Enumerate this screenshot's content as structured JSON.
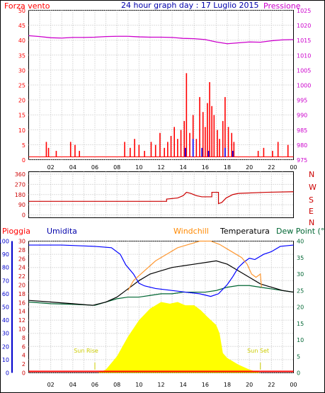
{
  "colors": {
    "wind": "#ff0000",
    "gust": "#0000ff",
    "pressure": "#cc00cc",
    "winddir": "#cc0000",
    "rain": "#ff0000",
    "humidity": "#0000ff",
    "windchill": "#ff9933",
    "temperature": "#000000",
    "dewpoint": "#006633",
    "solar": "#ffff00",
    "axis": "#000000",
    "grid": "#bbbbbb"
  },
  "chart_data": [
    {
      "type": "bar",
      "title": "24 hour graph day : 17 Luglio 2015",
      "left_label": "Forza vento",
      "right_label": "Pressione",
      "x_ticks": [
        "02",
        "04",
        "06",
        "08",
        "10",
        "12",
        "14",
        "16",
        "18",
        "20",
        "22",
        "00"
      ],
      "y_left_ticks": [
        "0",
        "5",
        "10",
        "15",
        "20",
        "25",
        "30",
        "35",
        "40",
        "45",
        "50"
      ],
      "y_right_ticks": [
        "975",
        "980",
        "985",
        "990",
        "995",
        "1000",
        "1005",
        "1010",
        "1015",
        "1020",
        "1025"
      ],
      "xlim": [
        0,
        24
      ],
      "ylim_left": [
        0,
        50
      ],
      "ylim_right": [
        975,
        1025
      ],
      "series": [
        {
          "key": "pressure",
          "axis": "right",
          "points": [
            [
              0,
              1016.5
            ],
            [
              1,
              1016.2
            ],
            [
              2,
              1015.8
            ],
            [
              3,
              1015.7
            ],
            [
              4,
              1015.9
            ],
            [
              5,
              1015.9
            ],
            [
              6,
              1016.0
            ],
            [
              7,
              1016.2
            ],
            [
              8,
              1016.3
            ],
            [
              9,
              1016.3
            ],
            [
              10,
              1016.1
            ],
            [
              11,
              1016.0
            ],
            [
              12,
              1016.0
            ],
            [
              13,
              1015.9
            ],
            [
              14,
              1015.6
            ],
            [
              15,
              1015.5
            ],
            [
              16,
              1015.2
            ],
            [
              17,
              1014.4
            ],
            [
              18,
              1013.8
            ],
            [
              19,
              1014.1
            ],
            [
              20,
              1014.4
            ],
            [
              21,
              1014.3
            ],
            [
              22,
              1014.8
            ],
            [
              23,
              1015.1
            ],
            [
              24,
              1015.2
            ]
          ]
        },
        {
          "key": "wind",
          "axis": "left",
          "points": [
            [
              1.6,
              5
            ],
            [
              1.8,
              3
            ],
            [
              2.5,
              2
            ],
            [
              3.8,
              5
            ],
            [
              4.2,
              4
            ],
            [
              4.6,
              2
            ],
            [
              8.7,
              5
            ],
            [
              9.2,
              3
            ],
            [
              9.6,
              6
            ],
            [
              10.0,
              4
            ],
            [
              10.5,
              2
            ],
            [
              11.1,
              5
            ],
            [
              11.5,
              4
            ],
            [
              11.9,
              8
            ],
            [
              12.3,
              3
            ],
            [
              12.6,
              5
            ],
            [
              12.9,
              7
            ],
            [
              13.2,
              10
            ],
            [
              13.5,
              6
            ],
            [
              13.8,
              9
            ],
            [
              14.1,
              12
            ],
            [
              14.3,
              28
            ],
            [
              14.6,
              8
            ],
            [
              14.9,
              14
            ],
            [
              15.2,
              6
            ],
            [
              15.5,
              20
            ],
            [
              15.8,
              15
            ],
            [
              16.0,
              10
            ],
            [
              16.2,
              18
            ],
            [
              16.4,
              25
            ],
            [
              16.6,
              17
            ],
            [
              16.8,
              14
            ],
            [
              17.1,
              9
            ],
            [
              17.3,
              6
            ],
            [
              17.6,
              12
            ],
            [
              17.8,
              20
            ],
            [
              18.1,
              10
            ],
            [
              18.4,
              8
            ],
            [
              18.6,
              5
            ],
            [
              20.8,
              2
            ],
            [
              21.3,
              3
            ],
            [
              22.1,
              2
            ],
            [
              22.6,
              5
            ],
            [
              23.5,
              4
            ]
          ]
        },
        {
          "key": "gust",
          "axis": "left",
          "points": [
            [
              14.2,
              3
            ],
            [
              14.9,
              6
            ],
            [
              15.7,
              3
            ],
            [
              16.3,
              2
            ],
            [
              17.8,
              3
            ],
            [
              18.5,
              2
            ]
          ]
        }
      ]
    },
    {
      "type": "line",
      "left_ticks": [
        "360",
        "270",
        "180",
        "90",
        "0"
      ],
      "right_letters": [
        "N",
        "W",
        "S",
        "E",
        "N"
      ],
      "ylim": [
        0,
        360
      ],
      "series": [
        {
          "key": "winddir",
          "points": [
            [
              0,
              120
            ],
            [
              12.5,
              120
            ],
            [
              12.5,
              140
            ],
            [
              13.5,
              150
            ],
            [
              14.0,
              170
            ],
            [
              14.3,
              200
            ],
            [
              14.7,
              190
            ],
            [
              15.2,
              170
            ],
            [
              15.7,
              160
            ],
            [
              16.6,
              160
            ],
            [
              16.6,
              200
            ],
            [
              17.2,
              200
            ],
            [
              17.2,
              100
            ],
            [
              17.5,
              110
            ],
            [
              17.9,
              150
            ],
            [
              18.5,
              180
            ],
            [
              19.0,
              190
            ],
            [
              21.5,
              200
            ],
            [
              24,
              205
            ]
          ]
        }
      ]
    },
    {
      "type": "line",
      "left_label": "Pioggia",
      "humidity_label": "Umidita",
      "windchill_label": "Windchill",
      "temperature_label": "Temperatura",
      "dewpoint_label": "Dew Point (°C",
      "sunrise_label": "Sun Rise",
      "sunset_label": "Sun Set",
      "x_ticks": [
        "02",
        "04",
        "06",
        "08",
        "10",
        "12",
        "14",
        "16",
        "18",
        "20",
        "22",
        "00"
      ],
      "y_humidity_ticks": [
        "0",
        "10",
        "20",
        "30",
        "40",
        "50",
        "60",
        "70",
        "80",
        "90",
        "100"
      ],
      "y_rain_ticks": [
        "0",
        "2",
        "4",
        "6",
        "8",
        "10",
        "12",
        "14",
        "16",
        "18",
        "20",
        "22",
        "24",
        "26",
        "28",
        "30"
      ],
      "y_temp_ticks": [
        "0",
        "5",
        "10",
        "15",
        "20",
        "25",
        "30",
        "35",
        "40"
      ],
      "ylim_humidity": [
        0,
        100
      ],
      "ylim_temp": [
        0,
        40
      ],
      "series": [
        {
          "key": "humidity",
          "axis": "humidity",
          "points": [
            [
              0,
              97
            ],
            [
              3,
              97
            ],
            [
              6,
              96
            ],
            [
              7.5,
              95
            ],
            [
              8.3,
              90
            ],
            [
              8.8,
              82
            ],
            [
              9.5,
              75
            ],
            [
              10,
              68
            ],
            [
              10.5,
              66
            ],
            [
              11.5,
              64
            ],
            [
              12.5,
              63
            ],
            [
              13.5,
              62
            ],
            [
              14.5,
              61
            ],
            [
              15.5,
              60
            ],
            [
              16.5,
              58
            ],
            [
              17.2,
              60
            ],
            [
              18,
              67
            ],
            [
              18.5,
              73
            ],
            [
              19,
              80
            ],
            [
              19.5,
              84
            ],
            [
              20,
              87
            ],
            [
              20.5,
              86
            ],
            [
              21.3,
              90
            ],
            [
              22,
              92
            ],
            [
              22.8,
              96
            ],
            [
              24,
              97
            ]
          ]
        },
        {
          "key": "windchill",
          "axis": "temp",
          "points": [
            [
              9.0,
              25
            ],
            [
              9.5,
              28
            ],
            [
              10.5,
              31
            ],
            [
              11.5,
              34
            ],
            [
              12.5,
              36
            ],
            [
              13.5,
              38
            ],
            [
              14.5,
              39
            ],
            [
              15.5,
              40
            ],
            [
              16.5,
              40
            ],
            [
              17.3,
              39
            ],
            [
              18.3,
              37
            ],
            [
              19.3,
              35
            ],
            [
              19.8,
              33
            ],
            [
              20.2,
              30
            ],
            [
              20.6,
              29
            ],
            [
              21.0,
              30
            ],
            [
              21.1,
              26
            ]
          ]
        },
        {
          "key": "temperature",
          "axis": "temp",
          "points": [
            [
              0,
              22
            ],
            [
              2,
              21.5
            ],
            [
              4,
              21
            ],
            [
              5.8,
              20.5
            ],
            [
              7,
              21.5
            ],
            [
              8,
              23
            ],
            [
              9,
              25.5
            ],
            [
              10,
              28
            ],
            [
              11,
              30
            ],
            [
              12,
              31
            ],
            [
              13,
              32
            ],
            [
              14,
              32.5
            ],
            [
              15,
              33
            ],
            [
              16,
              33.5
            ],
            [
              17,
              34
            ],
            [
              18,
              33
            ],
            [
              19,
              31
            ],
            [
              20,
              29
            ],
            [
              21,
              27
            ],
            [
              22,
              26
            ],
            [
              23,
              25
            ],
            [
              24,
              24.5
            ]
          ]
        },
        {
          "key": "dewpoint",
          "axis": "temp",
          "points": [
            [
              0,
              21.5
            ],
            [
              2,
              21
            ],
            [
              4,
              20.8
            ],
            [
              6,
              20.5
            ],
            [
              7,
              21.5
            ],
            [
              8,
              22.5
            ],
            [
              9,
              23
            ],
            [
              10,
              23
            ],
            [
              11,
              23.5
            ],
            [
              12,
              24
            ],
            [
              13,
              24
            ],
            [
              14,
              24.5
            ],
            [
              15,
              24.5
            ],
            [
              16,
              24.5
            ],
            [
              17,
              25
            ],
            [
              18,
              26
            ],
            [
              19,
              26.5
            ],
            [
              20,
              26.5
            ],
            [
              21,
              26
            ],
            [
              22,
              25.5
            ],
            [
              23,
              25
            ],
            [
              24,
              24.5
            ]
          ]
        },
        {
          "key": "solar",
          "axis": "temp",
          "points": [
            [
              6.3,
              0
            ],
            [
              7,
              1
            ],
            [
              8,
              5
            ],
            [
              9,
              11
            ],
            [
              10,
              16
            ],
            [
              11,
              19.5
            ],
            [
              12,
              21.5
            ],
            [
              12.8,
              21
            ],
            [
              13.5,
              21.5
            ],
            [
              14.2,
              20.5
            ],
            [
              15,
              20.5
            ],
            [
              15.6,
              19
            ],
            [
              16.2,
              17
            ],
            [
              17,
              14.5
            ],
            [
              17.3,
              12
            ],
            [
              17.6,
              6
            ],
            [
              18,
              4.5
            ],
            [
              19,
              2.5
            ],
            [
              20,
              1
            ],
            [
              21,
              0
            ]
          ]
        },
        {
          "key": "rain",
          "axis": "humidity",
          "points": [
            [
              0,
              0
            ],
            [
              24,
              0
            ]
          ]
        }
      ]
    }
  ]
}
